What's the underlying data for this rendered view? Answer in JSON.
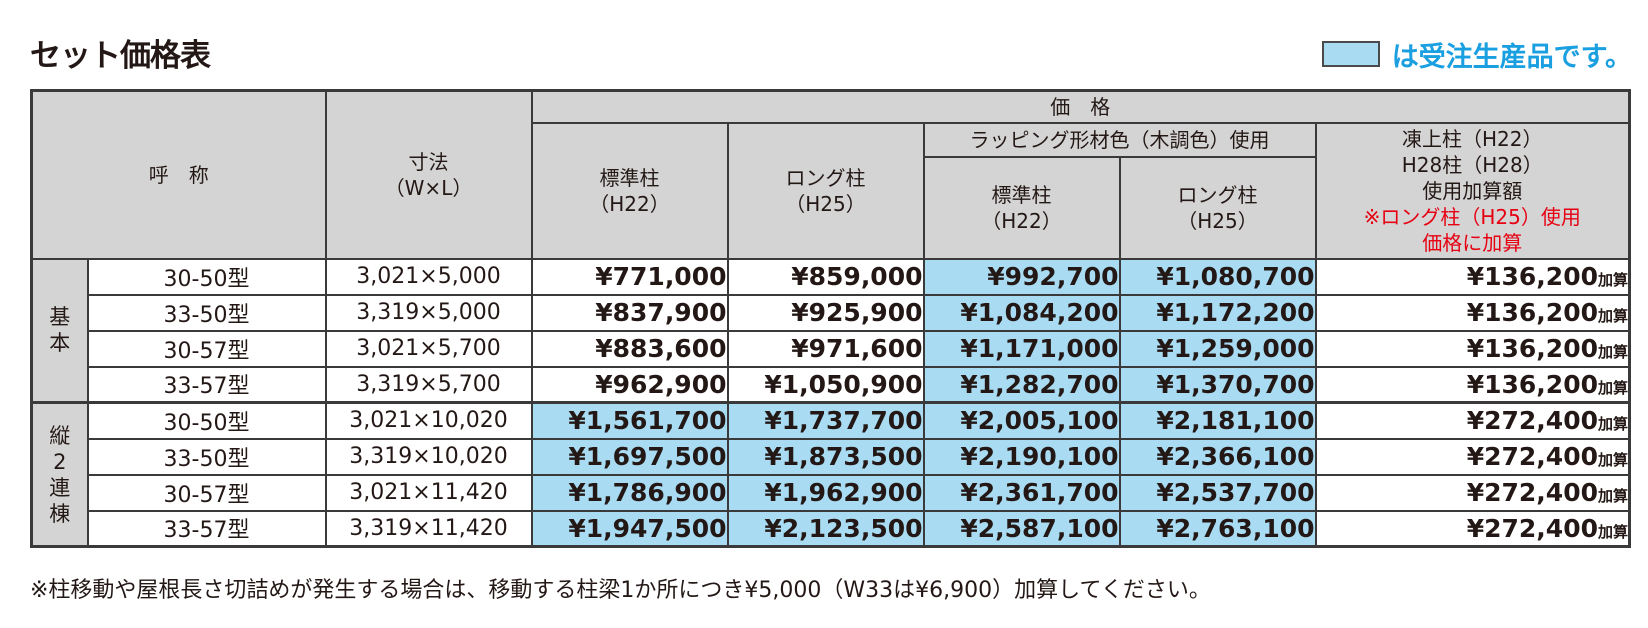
{
  "title": "セット価格表",
  "legend": {
    "text": "は受注生産品です。",
    "swatch_color": "#a9dcf2"
  },
  "header": {
    "name": "呼　称",
    "size_line1": "寸法",
    "size_line2": "（W×L）",
    "price": "価　格",
    "std_line1": "標準柱",
    "std_line2": "（H22）",
    "long_line1": "ロング柱",
    "long_line2": "（H25）",
    "wrap": "ラッピング形材色（木調色）使用",
    "wrap_std_line1": "標準柱",
    "wrap_std_line2": "（H22）",
    "wrap_long_line1": "ロング柱",
    "wrap_long_line2": "（H25）",
    "add_line1": "凍上柱（H22）",
    "add_line2": "H28柱（H28）",
    "add_line3": "使用加算額",
    "add_note1": "※ロング柱（H25）使用",
    "add_note2": "価格に加算"
  },
  "groups": [
    {
      "label": "基\n本",
      "rows": [
        {
          "name": "30-50型",
          "size": "3,021×5,000",
          "std": "¥771,000",
          "long": "¥859,000",
          "wrap_std": "¥992,700",
          "wrap_long": "¥1,080,700",
          "add": "¥136,200"
        },
        {
          "name": "33-50型",
          "size": "3,319×5,000",
          "std": "¥837,900",
          "long": "¥925,900",
          "wrap_std": "¥1,084,200",
          "wrap_long": "¥1,172,200",
          "add": "¥136,200"
        },
        {
          "name": "30-57型",
          "size": "3,021×5,700",
          "std": "¥883,600",
          "long": "¥971,600",
          "wrap_std": "¥1,171,000",
          "wrap_long": "¥1,259,000",
          "add": "¥136,200"
        },
        {
          "name": "33-57型",
          "size": "3,319×5,700",
          "std": "¥962,900",
          "long": "¥1,050,900",
          "wrap_std": "¥1,282,700",
          "wrap_long": "¥1,370,700",
          "add": "¥136,200"
        }
      ]
    },
    {
      "label": "縦\n2\n連\n棟",
      "rows": [
        {
          "name": "30-50型",
          "size": "3,021×10,020",
          "std": "¥1,561,700",
          "long": "¥1,737,700",
          "wrap_std": "¥2,005,100",
          "wrap_long": "¥2,181,100",
          "add": "¥272,400"
        },
        {
          "name": "33-50型",
          "size": "3,319×10,020",
          "std": "¥1,697,500",
          "long": "¥1,873,500",
          "wrap_std": "¥2,190,100",
          "wrap_long": "¥2,366,100",
          "add": "¥272,400"
        },
        {
          "name": "30-57型",
          "size": "3,021×11,420",
          "std": "¥1,786,900",
          "long": "¥1,962,900",
          "wrap_std": "¥2,361,700",
          "wrap_long": "¥2,537,700",
          "add": "¥272,400"
        },
        {
          "name": "33-57型",
          "size": "3,319×11,420",
          "std": "¥1,947,500",
          "long": "¥2,123,500",
          "wrap_std": "¥2,587,100",
          "wrap_long": "¥2,763,100",
          "add": "¥272,400"
        }
      ]
    }
  ],
  "add_suffix": "加算",
  "footnote": "※柱移動や屋根長さ切詰めが発生する場合は、移動する柱梁1か所につき¥5,000（W33は¥6,900）加算してください。"
}
